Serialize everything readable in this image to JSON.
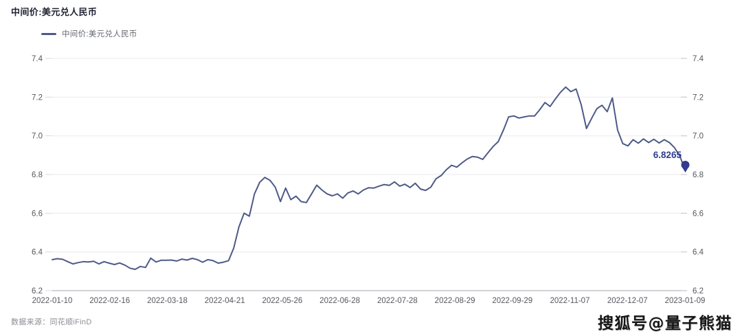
{
  "header": {
    "title": "中间价:美元兑人民币"
  },
  "legend": {
    "label": "中间价:美元兑人民币"
  },
  "footer": {
    "source": "数据来源：同花顺iFinD",
    "watermark": "搜狐号@量子熊猫"
  },
  "chart_data": {
    "type": "line",
    "title": "中间价:美元兑人民币",
    "series_name": "中间价:美元兑人民币",
    "x_tick_labels": [
      "2022-01-10",
      "2022-02-16",
      "2022-03-18",
      "2022-04-21",
      "2022-05-26",
      "2022-06-28",
      "2022-07-28",
      "2022-08-29",
      "2022-09-29",
      "2022-11-07",
      "2022-12-07",
      "2023-01-09"
    ],
    "y_ticks": [
      6.2,
      6.4,
      6.6,
      6.8,
      7.0,
      7.2,
      7.4
    ],
    "ylim": [
      6.2,
      7.4
    ],
    "grid": true,
    "legend_position": "top-left",
    "line_color": "#4d5987",
    "marker_color": "#2f3c8f",
    "grid_color": "#ededf0",
    "axis_line_color": "#b7b7bc",
    "tick_label_color": "#55575d",
    "last_point_label": "6.8265",
    "last_value": 6.8265,
    "values": [
      6.36,
      6.365,
      6.362,
      6.35,
      6.338,
      6.345,
      6.35,
      6.348,
      6.352,
      6.338,
      6.35,
      6.342,
      6.335,
      6.343,
      6.332,
      6.316,
      6.31,
      6.325,
      6.32,
      6.368,
      6.348,
      6.357,
      6.357,
      6.358,
      6.353,
      6.363,
      6.358,
      6.367,
      6.36,
      6.347,
      6.36,
      6.355,
      6.342,
      6.347,
      6.355,
      6.42,
      6.53,
      6.6,
      6.585,
      6.7,
      6.76,
      6.785,
      6.77,
      6.735,
      6.66,
      6.73,
      6.67,
      6.688,
      6.66,
      6.655,
      6.7,
      6.745,
      6.72,
      6.7,
      6.69,
      6.7,
      6.678,
      6.705,
      6.715,
      6.7,
      6.72,
      6.732,
      6.73,
      6.74,
      6.748,
      6.744,
      6.762,
      6.74,
      6.75,
      6.733,
      6.755,
      6.725,
      6.718,
      6.735,
      6.778,
      6.795,
      6.825,
      6.848,
      6.838,
      6.86,
      6.88,
      6.893,
      6.89,
      6.878,
      6.912,
      6.945,
      6.97,
      7.03,
      7.098,
      7.103,
      7.092,
      7.098,
      7.103,
      7.103,
      7.135,
      7.172,
      7.152,
      7.19,
      7.225,
      7.252,
      7.228,
      7.242,
      7.16,
      7.038,
      7.09,
      7.14,
      7.158,
      7.125,
      7.196,
      7.03,
      6.96,
      6.948,
      6.98,
      6.962,
      6.984,
      6.965,
      6.982,
      6.963,
      6.98,
      6.965,
      6.938,
      6.895,
      6.8265
    ]
  }
}
